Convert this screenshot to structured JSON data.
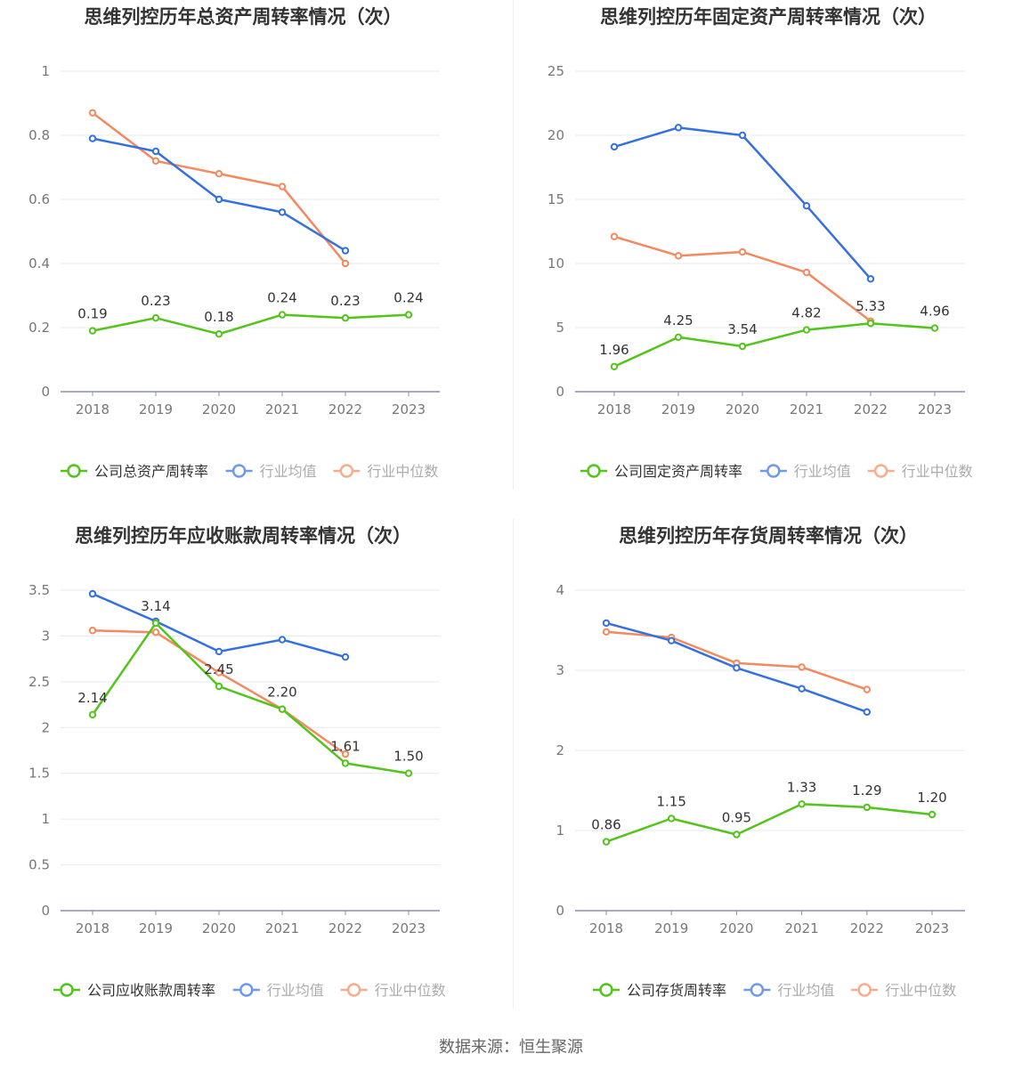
{
  "footer": {
    "label": "数据来源：",
    "value": "恒生聚源"
  },
  "colors": {
    "company": "#52c41a",
    "avg": "#3470e0",
    "median": "#f4895f"
  },
  "chart_data": [
    {
      "type": "line",
      "title": "思维列控历年总资产周转率情况（次）",
      "x": [
        "2018",
        "2019",
        "2020",
        "2021",
        "2022",
        "2023"
      ],
      "ylim": [
        0,
        1
      ],
      "yticks": [
        "0",
        "0.2",
        "0.4",
        "0.6",
        "0.8",
        "1"
      ],
      "ytick_values": [
        0,
        0.2,
        0.4,
        0.6,
        0.8,
        1
      ],
      "series": [
        {
          "name": "公司总资产周转率",
          "key": "company",
          "values": [
            0.19,
            0.23,
            0.18,
            0.24,
            0.23,
            0.24
          ],
          "labels": [
            "0.19",
            "0.23",
            "0.18",
            "0.24",
            "0.23",
            "0.24"
          ]
        },
        {
          "name": "行业均值",
          "key": "avg",
          "values": [
            0.79,
            0.75,
            0.6,
            0.56,
            0.44,
            null
          ]
        },
        {
          "name": "行业中位数",
          "key": "median",
          "values": [
            0.87,
            0.72,
            0.68,
            0.64,
            0.4,
            null
          ]
        }
      ]
    },
    {
      "type": "line",
      "title": "思维列控历年固定资产周转率情况（次）",
      "x": [
        "2018",
        "2019",
        "2020",
        "2021",
        "2022",
        "2023"
      ],
      "ylim": [
        0,
        25
      ],
      "yticks": [
        "0",
        "5",
        "10",
        "15",
        "20",
        "25"
      ],
      "ytick_values": [
        0,
        5,
        10,
        15,
        20,
        25
      ],
      "series": [
        {
          "name": "公司固定资产周转率",
          "key": "company",
          "values": [
            1.96,
            4.25,
            3.54,
            4.82,
            5.33,
            4.96
          ],
          "labels": [
            "1.96",
            "4.25",
            "3.54",
            "4.82",
            "5.33",
            "4.96"
          ]
        },
        {
          "name": "行业均值",
          "key": "avg",
          "values": [
            19.1,
            20.6,
            20.0,
            14.5,
            8.8,
            null
          ]
        },
        {
          "name": "行业中位数",
          "key": "median",
          "values": [
            12.1,
            10.6,
            10.9,
            9.3,
            5.5,
            null
          ]
        }
      ]
    },
    {
      "type": "line",
      "title": "思维列控历年应收账款周转率情况（次）",
      "x": [
        "2018",
        "2019",
        "2020",
        "2021",
        "2022",
        "2023"
      ],
      "ylim": [
        0,
        3.5
      ],
      "yticks": [
        "0",
        "0.5",
        "1",
        "1.5",
        "2",
        "2.5",
        "3",
        "3.5"
      ],
      "ytick_values": [
        0,
        0.5,
        1,
        1.5,
        2,
        2.5,
        3,
        3.5
      ],
      "series": [
        {
          "name": "公司应收账款周转率",
          "key": "company",
          "values": [
            2.14,
            3.14,
            2.45,
            2.2,
            1.61,
            1.5
          ],
          "labels": [
            "2.14",
            "3.14",
            "2.45",
            "2.20",
            "1.61",
            "1.50"
          ]
        },
        {
          "name": "行业均值",
          "key": "avg",
          "values": [
            3.46,
            3.16,
            2.83,
            2.96,
            2.77,
            null
          ]
        },
        {
          "name": "行业中位数",
          "key": "median",
          "values": [
            3.06,
            3.04,
            2.6,
            2.2,
            1.71,
            null
          ]
        }
      ]
    },
    {
      "type": "line",
      "title": "思维列控历年存货周转率情况（次）",
      "x": [
        "2018",
        "2019",
        "2020",
        "2021",
        "2022",
        "2023"
      ],
      "ylim": [
        0,
        4
      ],
      "yticks": [
        "0",
        "1",
        "2",
        "3",
        "4"
      ],
      "ytick_values": [
        0,
        1,
        2,
        3,
        4
      ],
      "series": [
        {
          "name": "公司存货周转率",
          "key": "company",
          "values": [
            0.86,
            1.15,
            0.95,
            1.33,
            1.29,
            1.2
          ],
          "labels": [
            "0.86",
            "1.15",
            "0.95",
            "1.33",
            "1.29",
            "1.20"
          ]
        },
        {
          "name": "行业均值",
          "key": "avg",
          "values": [
            3.59,
            3.37,
            3.03,
            2.77,
            2.48,
            null
          ]
        },
        {
          "name": "行业中位数",
          "key": "median",
          "values": [
            3.48,
            3.41,
            3.09,
            3.04,
            2.76,
            null
          ]
        }
      ]
    }
  ]
}
